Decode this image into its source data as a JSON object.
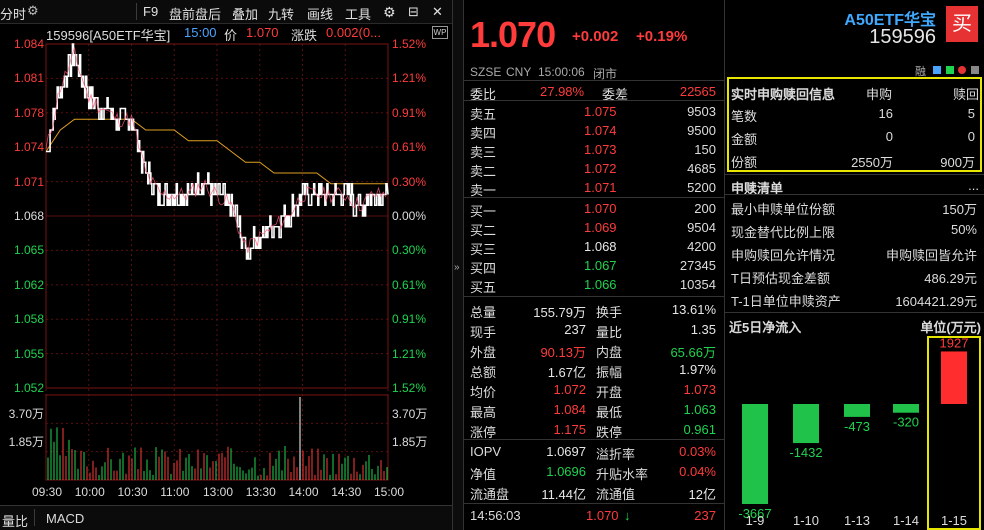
{
  "toolbar": {
    "time_tab": "分时",
    "f9": "F9",
    "pre_post": "盘前盘后",
    "overlay": "叠加",
    "nine_turns": "九转",
    "draw": "画线",
    "tools": "工具"
  },
  "chart_header": {
    "code_name": "159596[A50ETF华宝]",
    "time": "15:00",
    "price_label": "价",
    "price": "1.070",
    "change_label": "涨跌",
    "change": "0.002(0...",
    "badge": "WP"
  },
  "price_axis": {
    "left": [
      "1.084",
      "1.081",
      "1.078",
      "1.074",
      "1.071",
      "1.068",
      "1.065",
      "1.062",
      "1.058",
      "1.055",
      "1.052"
    ],
    "right": [
      "1.52%",
      "1.21%",
      "0.91%",
      "0.61%",
      "0.30%",
      "0.00%",
      "0.30%",
      "0.61%",
      "0.91%",
      "1.21%",
      "1.52%"
    ]
  },
  "volume_axis": {
    "left": [
      "3.70万",
      "1.85万"
    ],
    "right": [
      "3.70万",
      "1.85万"
    ]
  },
  "time_axis": [
    "09:30",
    "10:00",
    "10:30",
    "11:00",
    "13:00",
    "13:30",
    "14:00",
    "14:30",
    "15:00"
  ],
  "chart_data": {
    "type": "line",
    "x": [
      "09:30",
      "09:40",
      "09:50",
      "10:00",
      "10:10",
      "10:20",
      "10:30",
      "10:40",
      "10:50",
      "11:00",
      "11:10",
      "11:20",
      "11:30",
      "13:10",
      "13:20",
      "13:30",
      "13:40",
      "13:50",
      "14:00",
      "14:10",
      "14:20",
      "14:30",
      "14:40",
      "14:50",
      "15:00"
    ],
    "series": [
      {
        "values": [
          1.074,
          1.08,
          1.083,
          1.079,
          1.078,
          1.077,
          1.077,
          1.072,
          1.07,
          1.07,
          1.07,
          1.071,
          1.07,
          1.069,
          1.065,
          1.066,
          1.067,
          1.068,
          1.07,
          1.07,
          1.07,
          1.07,
          1.069,
          1.07,
          1.07
        ]
      },
      {
        "values": [
          1.074,
          1.076,
          1.077,
          1.077,
          1.077,
          1.077,
          1.077,
          1.076,
          1.076,
          1.076,
          1.075,
          1.075,
          1.075,
          1.074,
          1.073,
          1.073,
          1.072,
          1.072,
          1.072,
          1.072,
          1.071,
          1.071,
          1.071,
          1.071,
          1.071
        ]
      }
    ],
    "ylim": [
      1.052,
      1.084
    ],
    "volume_max": "3.70万"
  },
  "bottom_tabs": {
    "tab1": "量比",
    "tab2": "MACD"
  },
  "quote": {
    "price": "1.070",
    "change": "+0.002",
    "pct": "+0.19%",
    "market": "SZSE",
    "currency": "CNY",
    "time": "15:00:06",
    "status": "闭市",
    "wei_bi_label": "委比",
    "wei_bi": "27.98%",
    "wei_cha_label": "委差",
    "wei_cha": "22565",
    "asks": [
      {
        "label": "卖五",
        "price": "1.075",
        "vol": "9503"
      },
      {
        "label": "卖四",
        "price": "1.074",
        "vol": "9500"
      },
      {
        "label": "卖三",
        "price": "1.073",
        "vol": "150"
      },
      {
        "label": "卖二",
        "price": "1.072",
        "vol": "4685"
      },
      {
        "label": "卖一",
        "price": "1.071",
        "vol": "5200"
      }
    ],
    "bids": [
      {
        "label": "买一",
        "price": "1.070",
        "vol": "200"
      },
      {
        "label": "买二",
        "price": "1.069",
        "vol": "9504"
      },
      {
        "label": "买三",
        "price": "1.068",
        "vol": "4200"
      },
      {
        "label": "买四",
        "price": "1.067",
        "vol": "27345"
      },
      {
        "label": "买五",
        "price": "1.066",
        "vol": "10354"
      }
    ],
    "stats": [
      {
        "l1": "总量",
        "v1": "155.79万",
        "c1": "white",
        "l2": "换手",
        "v2": "13.61%",
        "c2": "white"
      },
      {
        "l1": "现手",
        "v1": "237",
        "c1": "white",
        "l2": "量比",
        "v2": "1.35",
        "c2": "white"
      },
      {
        "l1": "外盘",
        "v1": "90.13万",
        "c1": "red",
        "l2": "内盘",
        "v2": "65.66万",
        "c2": "green"
      },
      {
        "l1": "总额",
        "v1": "1.67亿",
        "c1": "white",
        "l2": "振幅",
        "v2": "1.97%",
        "c2": "white"
      },
      {
        "l1": "均价",
        "v1": "1.072",
        "c1": "red",
        "l2": "开盘",
        "v2": "1.073",
        "c2": "red"
      },
      {
        "l1": "最高",
        "v1": "1.084",
        "c1": "red",
        "l2": "最低",
        "v2": "1.063",
        "c2": "green"
      },
      {
        "l1": "涨停",
        "v1": "1.175",
        "c1": "red",
        "l2": "跌停",
        "v2": "0.961",
        "c2": "green"
      }
    ],
    "iopv": [
      {
        "l1": "IOPV",
        "v1": "1.0697",
        "c1": "white",
        "l2": "溢折率",
        "v2": "0.03%",
        "c2": "red"
      },
      {
        "l1": "净值",
        "v1": "1.0696",
        "c1": "green",
        "l2": "升贴水率",
        "v2": "0.04%",
        "c2": "red"
      },
      {
        "l1": "流通盘",
        "v1": "11.44亿",
        "c1": "white",
        "l2": "流通值",
        "v2": "12亿",
        "c2": "white"
      }
    ],
    "tick": {
      "time": "14:56:03",
      "price": "1.070",
      "vol": "237"
    }
  },
  "right": {
    "name": "A50ETF华宝",
    "code": "159596",
    "buy_btn": "买",
    "small_label": "融",
    "sub_redeem": {
      "title": "实时申购赎回信息",
      "col1": "申购",
      "col2": "赎回",
      "rows": [
        {
          "label": "笔数",
          "v1": "16",
          "v2": "5"
        },
        {
          "label": "金额",
          "v1": "0",
          "v2": "0"
        },
        {
          "label": "份额",
          "v1": "2550万",
          "v2": "900万"
        }
      ]
    },
    "list": {
      "title": "申赎清单",
      "more": "...",
      "rows": [
        {
          "label": "最小申赎单位份额",
          "value": "150万"
        },
        {
          "label": "现金替代比例上限",
          "value": "50%"
        },
        {
          "label": "申购赎回允许情况",
          "value": "申购赎回皆允许"
        },
        {
          "label": "T日预估现金差额",
          "value": "486.29元"
        },
        {
          "label": "T-1日单位申赎资产",
          "value": "1604421.29元"
        }
      ]
    },
    "flow": {
      "title": "近5日净流入",
      "unit": "单位(万元)",
      "bars": [
        {
          "date": "1-9",
          "value": -3667
        },
        {
          "date": "1-10",
          "value": -1432
        },
        {
          "date": "1-13",
          "value": -473
        },
        {
          "date": "1-14",
          "value": -320
        },
        {
          "date": "1-15",
          "value": 1927
        }
      ]
    }
  }
}
